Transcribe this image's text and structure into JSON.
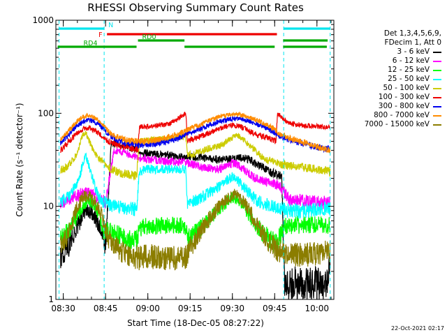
{
  "footer_text": "22-Oct-2021 02:17",
  "legend_header": [
    "Det 1,3,4,5,6,9,",
    "FDecim 1, Att 0"
  ],
  "chart_data": {
    "type": "line",
    "title": "RHESSI Observing Summary Count Rates",
    "xlabel": "Start Time (18-Dec-05 08:27:22)",
    "ylabel": "Count Rate (s⁻¹ detector⁻¹)",
    "y_scale": "log",
    "ylim": [
      1,
      1000
    ],
    "y_ticks": [
      1,
      10,
      100,
      1000
    ],
    "x_range_minutes": [
      507.37,
      606
    ],
    "x_ticks": [
      "08:30",
      "08:45",
      "09:00",
      "09:15",
      "09:30",
      "09:45",
      "10:00"
    ],
    "x_tick_minutes": [
      510,
      525,
      540,
      555,
      570,
      585,
      600
    ],
    "grid": false,
    "legend_position": "right",
    "background": "#ffffff",
    "night_boundaries_min": [
      508.5,
      524.5,
      588.2,
      604.7
    ],
    "flags": [
      {
        "label": "N",
        "color": "#00e5ee",
        "intervals": [
          [
            508.5,
            524.5
          ],
          [
            588.2,
            604.7
          ]
        ],
        "level": 1
      },
      {
        "label": "F",
        "color": "#ee0000",
        "intervals": [
          [
            525.5,
            585.8
          ]
        ],
        "level": 2
      },
      {
        "label": "RD0",
        "color": "#00aa00",
        "intervals": [
          [
            536.5,
            553
          ],
          [
            588,
            603.8
          ]
        ],
        "level": 3
      },
      {
        "label": "RD4",
        "color": "#00aa00",
        "intervals": [
          [
            508,
            536
          ],
          [
            553,
            585
          ],
          [
            588,
            603.5
          ]
        ],
        "level": 4
      }
    ],
    "series": [
      {
        "name": "3 - 6 keV",
        "color": "#000000",
        "x": [
          509,
          510.5,
          512,
          514,
          515,
          516,
          517,
          518,
          519,
          520,
          521,
          522,
          523,
          524,
          525,
          527,
          530,
          532,
          534,
          536,
          538,
          540,
          545,
          550,
          553,
          556,
          560,
          565,
          568,
          570,
          572,
          574,
          576,
          578,
          580,
          582,
          584,
          586,
          587.5,
          588.5,
          592,
          596,
          600,
          603.5,
          604.7
        ],
        "values": [
          2.7,
          3.3,
          3.8,
          5,
          6,
          7,
          8.5,
          9,
          8.7,
          8.8,
          7.5,
          7,
          6,
          4.5,
          3.7,
          48,
          46,
          44,
          42,
          40,
          38,
          37,
          36,
          35,
          34,
          34,
          33,
          32,
          32,
          32,
          33,
          33,
          32,
          29,
          27,
          25,
          23,
          22,
          20,
          1.5,
          1.5,
          1.5,
          1.5,
          1.5,
          2.8
        ]
      },
      {
        "name": "6 - 12 keV",
        "color": "#ff00ff",
        "x": [
          509,
          512,
          515,
          517,
          519,
          521,
          523,
          525,
          528,
          531,
          534,
          536,
          538,
          540,
          545,
          550,
          553,
          556,
          560,
          565,
          568,
          570,
          572,
          574,
          576,
          578,
          580,
          582,
          584,
          586,
          588,
          590,
          595,
          600,
          603.5,
          604.7
        ],
        "values": [
          11,
          12,
          13,
          14,
          14,
          13,
          12,
          11,
          40,
          38,
          36,
          34,
          33,
          32,
          31,
          30,
          30,
          28,
          26,
          25,
          27,
          29,
          28,
          25,
          22,
          20,
          19,
          18,
          18,
          17,
          15,
          12,
          11.5,
          11,
          11,
          11
        ]
      },
      {
        "name": "12 - 25 keV",
        "color": "#00ff00",
        "x": [
          509,
          512,
          515,
          517,
          519,
          521,
          523,
          524.5,
          526,
          529,
          532,
          534,
          536,
          537,
          540,
          545,
          550,
          553.5,
          554,
          558,
          562,
          566,
          570,
          572,
          574,
          576,
          578,
          580,
          582,
          584,
          586,
          588,
          590,
          595,
          600,
          603.5,
          604.7
        ],
        "values": [
          4.5,
          5.5,
          8,
          10,
          11.5,
          10.5,
          8,
          5,
          5.5,
          5,
          4.6,
          4.4,
          4.3,
          5.8,
          6.1,
          6.2,
          6.3,
          6,
          4.5,
          5.5,
          7.5,
          10,
          12.5,
          12,
          10,
          8,
          6.5,
          5.5,
          4.8,
          4.2,
          4,
          6,
          6.2,
          6.3,
          6.3,
          6.3,
          6.2
        ]
      },
      {
        "name": "25 - 50 keV",
        "color": "#00ffff",
        "x": [
          509,
          512,
          514,
          516,
          517,
          518,
          519,
          520,
          521,
          522,
          523,
          524.5,
          526,
          529,
          532,
          534,
          536,
          537,
          540,
          545,
          550,
          553.5,
          554,
          558,
          562,
          566,
          568,
          570,
          572,
          574,
          576,
          578,
          580,
          582,
          584,
          586,
          588,
          590,
          595,
          600,
          603.5,
          604.7
        ],
        "values": [
          11,
          13,
          16,
          22,
          30,
          35,
          28,
          22,
          17,
          14,
          12,
          11,
          10.5,
          10,
          9.7,
          9.5,
          9.3,
          24,
          25,
          25,
          25,
          25,
          11,
          12,
          14,
          17,
          19,
          21,
          19,
          16,
          14,
          12,
          11,
          10.5,
          10,
          9.8,
          9.6,
          8.8,
          9,
          9.2,
          9.4,
          9.5
        ]
      },
      {
        "name": "50 - 100 keV",
        "color": "#cccc00",
        "x": [
          509,
          511,
          513,
          515,
          516,
          517,
          518,
          519,
          520,
          521,
          523,
          525,
          527,
          530,
          533,
          536,
          537,
          540,
          545,
          550,
          553.5,
          554,
          558,
          562,
          566,
          568,
          570,
          572,
          574,
          576,
          578,
          580,
          582,
          585,
          586,
          588,
          592,
          596,
          600,
          603.5,
          604.7
        ],
        "values": [
          24,
          26,
          30,
          38,
          48,
          60,
          62,
          52,
          44,
          39,
          32,
          28,
          25,
          23,
          22,
          21,
          50,
          52,
          53,
          55,
          56,
          35,
          38,
          42,
          45,
          50,
          55,
          58,
          52,
          45,
          40,
          35,
          32,
          30,
          29,
          28,
          27,
          26,
          25,
          24,
          23
        ]
      },
      {
        "name": "100 - 300 keV",
        "color": "#ee0000",
        "x": [
          509,
          511,
          513,
          515,
          517,
          519,
          521,
          523,
          525,
          528,
          531,
          534,
          536.5,
          537,
          542,
          547,
          550,
          553.5,
          554,
          558,
          562,
          566,
          570,
          573,
          576,
          579,
          582,
          585.5,
          586,
          590,
          595,
          600,
          603.5,
          604.7
        ],
        "values": [
          40,
          46,
          54,
          62,
          68,
          70,
          66,
          60,
          52,
          47,
          44,
          42,
          41,
          72,
          73,
          76,
          85,
          100,
          50,
          55,
          62,
          70,
          75,
          72,
          65,
          58,
          55,
          50,
          100,
          78,
          74,
          72,
          72,
          72
        ]
      },
      {
        "name": "300 - 800 keV",
        "color": "#0000ee",
        "x": [
          509,
          511,
          513,
          515,
          517,
          519,
          521,
          523,
          525,
          527,
          530,
          533,
          536,
          539,
          542,
          545,
          548,
          551,
          554,
          558,
          562,
          566,
          570,
          574,
          578,
          582,
          585,
          586,
          590,
          594,
          598,
          602,
          604.7
        ],
        "values": [
          48,
          55,
          64,
          74,
          81,
          85,
          82,
          74,
          64,
          56,
          50,
          47,
          46,
          46,
          47,
          48,
          50,
          54,
          60,
          67,
          75,
          83,
          88,
          86,
          78,
          70,
          62,
          58,
          52,
          48,
          45,
          42,
          41
        ]
      },
      {
        "name": "800 - 7000 keV",
        "color": "#ff8c00",
        "x": [
          509,
          511,
          513,
          515,
          517,
          519,
          521,
          523,
          525,
          527,
          530,
          533,
          536,
          539,
          542,
          545,
          548,
          551,
          554,
          558,
          562,
          566,
          570,
          574,
          578,
          582,
          585,
          586,
          590,
          594,
          598,
          602,
          604.7
        ],
        "values": [
          52,
          60,
          70,
          82,
          92,
          95,
          90,
          82,
          70,
          60,
          54,
          51,
          50,
          50,
          51,
          53,
          56,
          60,
          66,
          74,
          84,
          93,
          97,
          95,
          86,
          76,
          68,
          62,
          55,
          50,
          46,
          42,
          40
        ]
      },
      {
        "name": "7000 - 15000 keV",
        "color": "#8b7d00",
        "x": [
          509,
          511,
          513,
          515,
          517,
          519,
          521,
          523,
          524.5,
          526,
          529,
          532,
          534,
          536,
          538,
          540,
          545,
          550,
          553.5,
          555,
          558,
          562,
          566,
          570,
          572,
          574,
          576,
          578,
          580,
          582,
          584,
          586,
          588,
          590,
          595,
          600,
          603.5,
          604.7
        ],
        "values": [
          3.8,
          4.5,
          6.5,
          10,
          12.5,
          13,
          11.5,
          9,
          6.5,
          4.5,
          3.6,
          3,
          2.9,
          2.8,
          2.8,
          2.9,
          2.8,
          2.8,
          2.9,
          3.5,
          5,
          7.5,
          10.5,
          13.5,
          13,
          11,
          9,
          7,
          5.5,
          4.5,
          3.8,
          3.4,
          3.2,
          3,
          3,
          3.1,
          3.2,
          3.3
        ]
      }
    ]
  }
}
